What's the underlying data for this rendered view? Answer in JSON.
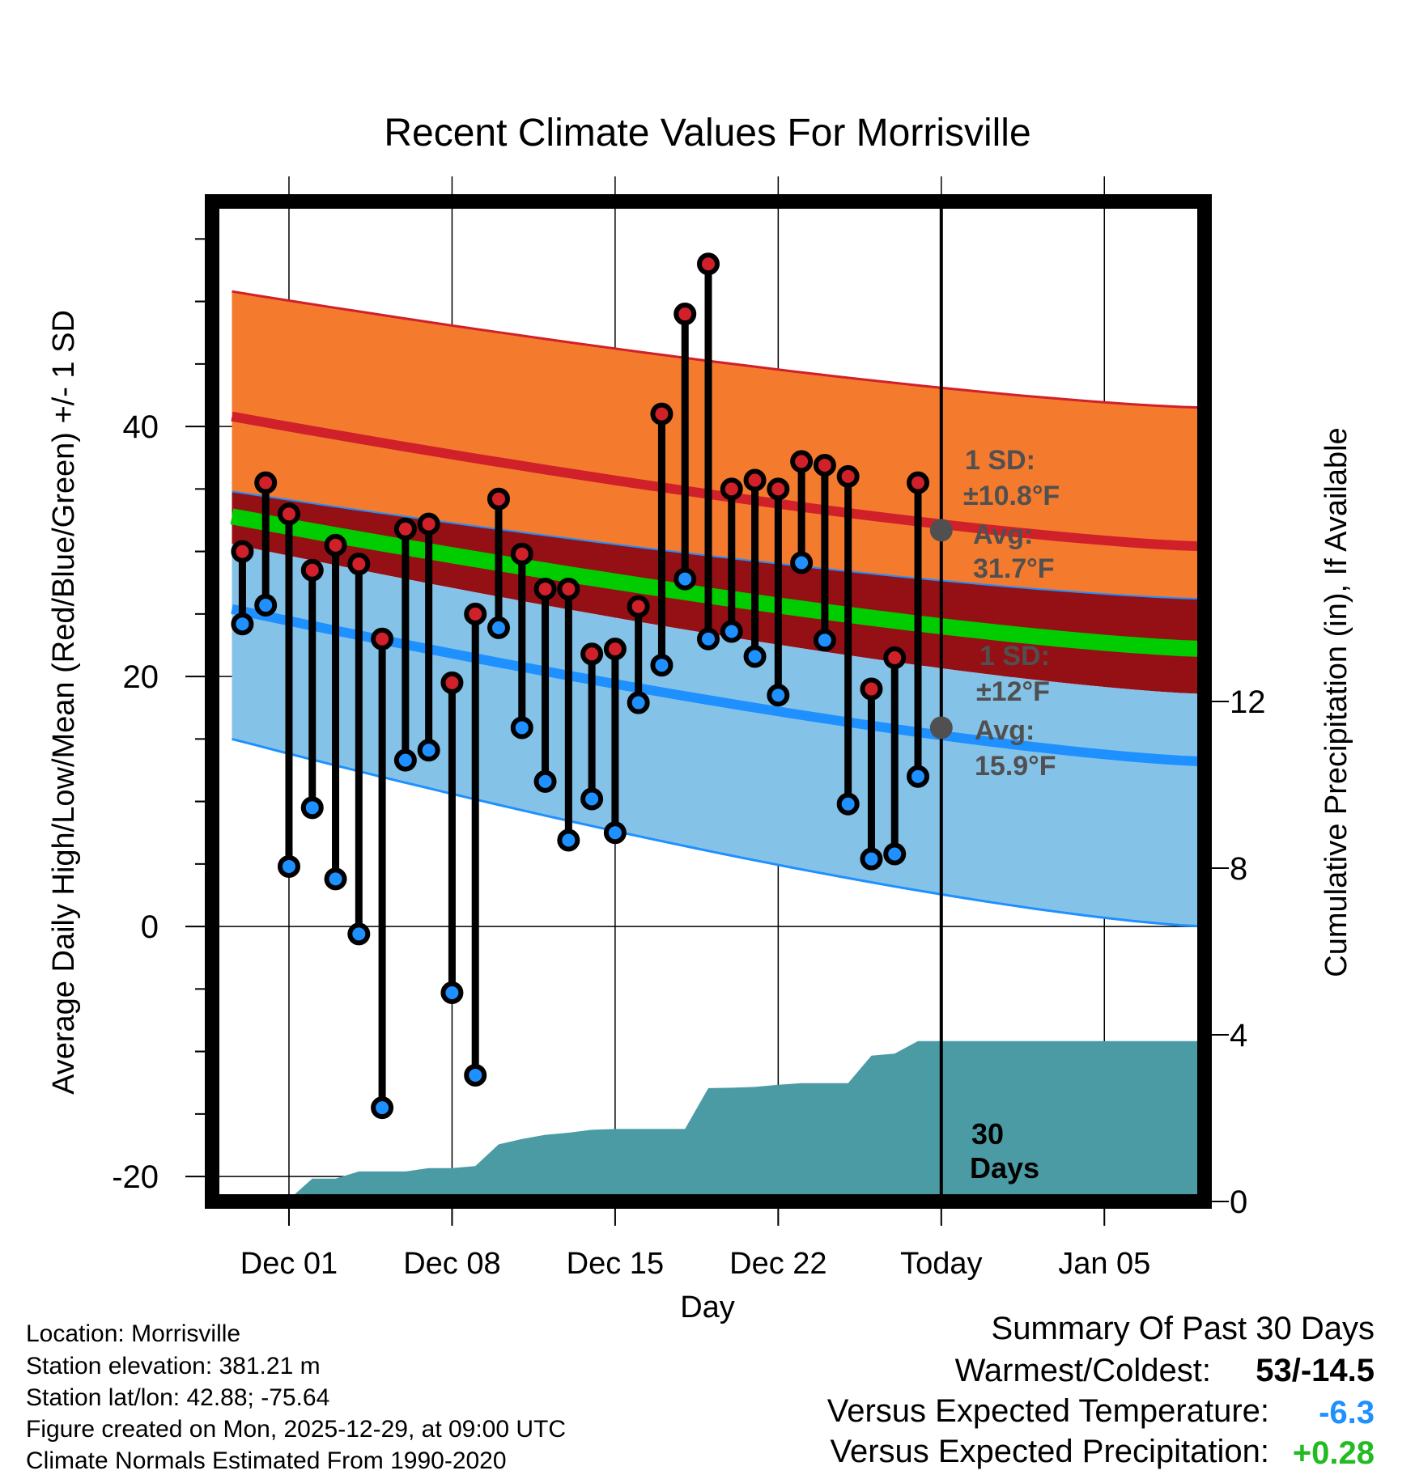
{
  "chart_data": {
    "type": "climate-range",
    "title": "Recent Climate Values For Morrisville",
    "xlabel": "Day",
    "ylabel": "Average Daily High/Low/Mean (Red/Blue/Green) +/- 1 SD",
    "y2label": "Cumulative Precipitation (in), If Available",
    "ylim": [
      -22,
      58
    ],
    "y2lim": [
      0,
      24
    ],
    "xlim": [
      -3.3,
      39.3
    ],
    "x_ticks": [
      {
        "day": 0,
        "label": "Dec 01"
      },
      {
        "day": 7,
        "label": "Dec 08"
      },
      {
        "day": 14,
        "label": "Dec 15"
      },
      {
        "day": 21,
        "label": "Dec 22"
      },
      {
        "day": 28,
        "label": "Today"
      },
      {
        "day": 35,
        "label": "Jan 05"
      }
    ],
    "y_ticks": [
      -20,
      0,
      20,
      40
    ],
    "y2_ticks": [
      0,
      4,
      8,
      12
    ],
    "today_day": 28,
    "normals": {
      "high_upper": {
        "start": 50.8,
        "end": 41.5
      },
      "high_mean": {
        "start": 40.8,
        "end": 30.4
      },
      "high_lower": {
        "start": 34.8,
        "end": 26.2
      },
      "mean": {
        "start": 32.8,
        "end": 22.2
      },
      "low_upper": {
        "start": 30.6,
        "end": 18.6
      },
      "low_mean": {
        "start": 25.4,
        "end": 13.2
      },
      "low_lower": {
        "start": 15.0,
        "end": 0.0
      }
    },
    "colors": {
      "high_band": "#F47A2E",
      "high_line": "#D0202A",
      "between_band": "#951015",
      "mean_line": "#00CC00",
      "low_band": "#85C2E8",
      "low_line": "#1E90FF",
      "precip": "#4A9BA4",
      "high_dot": "#D0202A",
      "low_dot": "#1E90FF",
      "today_dot": "#505050",
      "annotation": "#505050"
    },
    "days": [
      -2,
      -1,
      0,
      1,
      2,
      3,
      4,
      5,
      6,
      7,
      8,
      9,
      10,
      11,
      12,
      13,
      14,
      15,
      16,
      17,
      18,
      19,
      20,
      21,
      22,
      23,
      24,
      25,
      26,
      27
    ],
    "highs": [
      30,
      35.5,
      33,
      28.5,
      30.5,
      29,
      23,
      31.8,
      32.2,
      19.5,
      25,
      34.2,
      29.8,
      27,
      27,
      21.8,
      22.2,
      25.6,
      41,
      49,
      53,
      35,
      35.7,
      35,
      37.2,
      36.9,
      36,
      19,
      21.5,
      35.5
    ],
    "lows": [
      24.2,
      25.7,
      4.8,
      9.5,
      3.8,
      -0.6,
      -14.5,
      13.3,
      14.1,
      -5.3,
      -11.9,
      23.9,
      15.9,
      11.6,
      6.9,
      10.2,
      7.5,
      17.9,
      20.9,
      27.8,
      23,
      23.6,
      21.6,
      18.5,
      29.1,
      22.9,
      9.8,
      5.4,
      5.8,
      12
    ],
    "precip_days": [
      -2,
      -1,
      0,
      1,
      2,
      3,
      4,
      5,
      6,
      7,
      8,
      9,
      10,
      11,
      12,
      13,
      14,
      15,
      16,
      17,
      18,
      19,
      20,
      21,
      22,
      23,
      24,
      25,
      26,
      27,
      28,
      39.3
    ],
    "precip_cum": [
      0.0,
      0.02,
      0.05,
      0.55,
      0.55,
      0.72,
      0.72,
      0.72,
      0.8,
      0.8,
      0.85,
      1.37,
      1.5,
      1.6,
      1.65,
      1.72,
      1.74,
      1.74,
      1.74,
      1.74,
      2.72,
      2.73,
      2.75,
      2.8,
      2.84,
      2.84,
      2.84,
      3.5,
      3.55,
      3.85,
      3.85,
      3.85
    ],
    "annotations": {
      "high_sd_label": "1 SD:",
      "high_sd_value": "±10.8°F",
      "high_avg_label": "Avg:",
      "high_avg_value": "31.7°F",
      "high_avg": 31.7,
      "low_sd_label": "1 SD:",
      "low_sd_value": "±12°F",
      "low_avg_label": "Avg:",
      "low_avg_value": "15.9°F",
      "low_avg": 15.9,
      "days_count": "30",
      "days_word": "Days"
    }
  },
  "meta": {
    "location": "Location: Morrisville",
    "elevation": "Station elevation: 381.21 m",
    "latlon": "Station lat/lon: 42.88; -75.64",
    "created": "Figure created on Mon, 2025-12-29, at 09:00 UTC",
    "normals": "Climate Normals Estimated From 1990-2020"
  },
  "summary": {
    "title": "Summary Of Past 30 Days",
    "warm_cold_label": "Warmest/Coldest:",
    "warm_cold_value": "53/-14.5",
    "temp_label": "Versus Expected Temperature:",
    "temp_value": "-6.3",
    "temp_color": "#1E90FF",
    "precip_label": "Versus Expected Precipitation:",
    "precip_value": "+0.28",
    "precip_color": "#22BB22"
  }
}
